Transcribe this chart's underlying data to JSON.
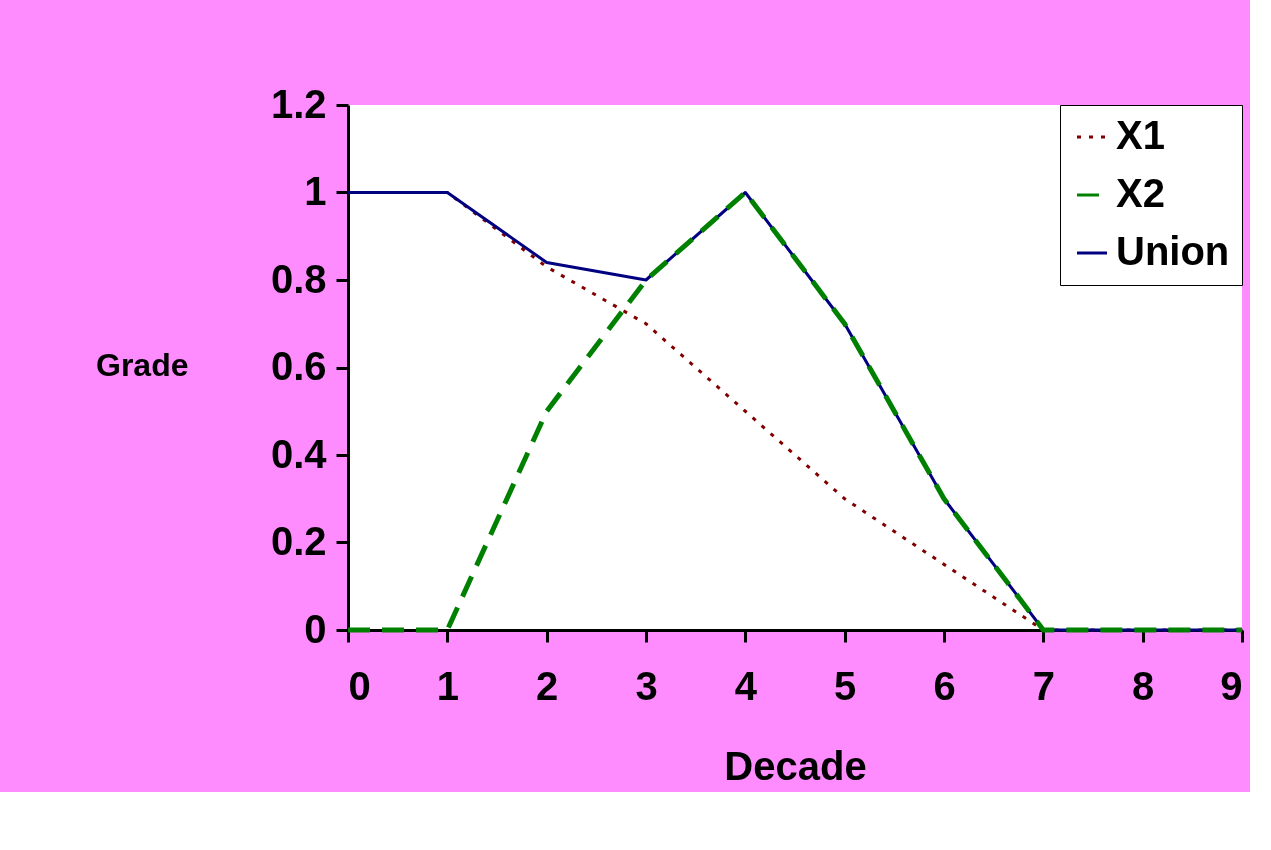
{
  "chart_data": {
    "type": "line",
    "xlabel": "Decade",
    "ylabel": "Grade",
    "x": [
      0,
      1,
      2,
      3,
      4,
      5,
      6,
      7,
      8,
      9
    ],
    "xlim": [
      0,
      9
    ],
    "xticks": [
      0,
      1,
      2,
      3,
      4,
      5,
      6,
      7,
      8,
      9
    ],
    "ylim": [
      0,
      1.2
    ],
    "yticks": [
      {
        "value": 0,
        "label": "0"
      },
      0.2,
      0.4,
      0.6,
      0.8,
      {
        "value": 1,
        "label": "1"
      },
      1.2
    ],
    "grid": false,
    "legend": "top right",
    "marker": "none",
    "series": [
      {
        "name": "X1",
        "color": "#800000",
        "line_style": "dotted",
        "values": [
          1,
          1,
          0.83,
          0.7,
          0.5,
          0.3,
          0.15,
          0,
          0,
          0
        ]
      },
      {
        "name": "X2",
        "color": "#008000",
        "line_style": "dashed",
        "values": [
          0,
          0,
          0.5,
          0.8,
          1,
          0.7,
          0.3,
          0,
          0,
          0
        ]
      },
      {
        "name": "Union",
        "color": "#000080",
        "line_style": "solid",
        "values": [
          1,
          1,
          0.84,
          0.8,
          1,
          0.7,
          0.3,
          0,
          0,
          0
        ]
      }
    ]
  }
}
